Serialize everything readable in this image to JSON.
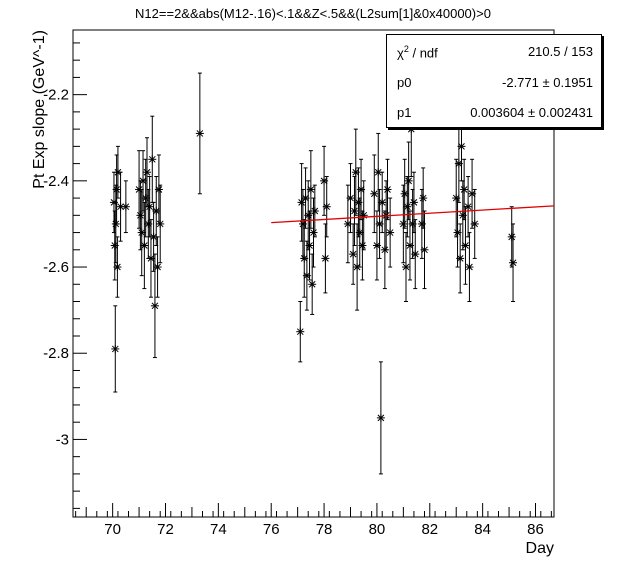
{
  "chart_data": {
    "type": "scatter",
    "title": "N12==2&&abs(M12-.16)<.1&&Z<.5&&(L2sum[1]&0x40000)>0",
    "xlabel": "Day",
    "ylabel": "Pt Exp slope (GeV^-1)",
    "xlim": [
      68.5,
      86.7
    ],
    "ylim": [
      -3.18,
      -2.05
    ],
    "x_ticks": [
      70,
      72,
      74,
      76,
      78,
      80,
      82,
      84,
      86
    ],
    "x_tick_labels": [
      "70",
      "72",
      "74",
      "76",
      "78",
      "80",
      "82",
      "84",
      "86"
    ],
    "y_ticks": [
      -2.2,
      -2.4,
      -2.6,
      -2.8,
      -3.0
    ],
    "y_tick_labels": [
      "-2.2",
      "-2.4",
      "-2.6",
      "-2.8",
      "-3"
    ],
    "grid": false,
    "marker": "asterisk",
    "points": [
      {
        "x": 70.05,
        "y": -2.45,
        "err": 0.07
      },
      {
        "x": 70.08,
        "y": -2.55,
        "err": 0.08
      },
      {
        "x": 70.1,
        "y": -2.79,
        "err": 0.1
      },
      {
        "x": 70.12,
        "y": -2.5,
        "err": 0.09
      },
      {
        "x": 70.15,
        "y": -2.42,
        "err": 0.08
      },
      {
        "x": 70.18,
        "y": -2.6,
        "err": 0.07
      },
      {
        "x": 70.2,
        "y": -2.38,
        "err": 0.06
      },
      {
        "x": 70.3,
        "y": -2.46,
        "err": 0.08
      },
      {
        "x": 70.5,
        "y": -2.46,
        "err": 0.06
      },
      {
        "x": 71.0,
        "y": -2.42,
        "err": 0.09
      },
      {
        "x": 71.05,
        "y": -2.48,
        "err": 0.08
      },
      {
        "x": 71.1,
        "y": -2.52,
        "err": 0.1
      },
      {
        "x": 71.15,
        "y": -2.4,
        "err": 0.07
      },
      {
        "x": 71.2,
        "y": -2.55,
        "err": 0.1
      },
      {
        "x": 71.25,
        "y": -2.44,
        "err": 0.09
      },
      {
        "x": 71.3,
        "y": -2.38,
        "err": 0.08
      },
      {
        "x": 71.35,
        "y": -2.5,
        "err": 0.08
      },
      {
        "x": 71.4,
        "y": -2.46,
        "err": 0.07
      },
      {
        "x": 71.45,
        "y": -2.58,
        "err": 0.09
      },
      {
        "x": 71.5,
        "y": -2.35,
        "err": 0.1
      },
      {
        "x": 71.55,
        "y": -2.53,
        "err": 0.08
      },
      {
        "x": 71.6,
        "y": -2.69,
        "err": 0.12
      },
      {
        "x": 71.65,
        "y": -2.47,
        "err": 0.08
      },
      {
        "x": 71.7,
        "y": -2.6,
        "err": 0.07
      },
      {
        "x": 71.75,
        "y": -2.42,
        "err": 0.08
      },
      {
        "x": 71.8,
        "y": -2.5,
        "err": 0.09
      },
      {
        "x": 73.3,
        "y": -2.29,
        "err": 0.14
      },
      {
        "x": 77.1,
        "y": -2.75,
        "err": 0.07
      },
      {
        "x": 77.15,
        "y": -2.45,
        "err": 0.09
      },
      {
        "x": 77.2,
        "y": -2.5,
        "err": 0.08
      },
      {
        "x": 77.25,
        "y": -2.58,
        "err": 0.09
      },
      {
        "x": 77.3,
        "y": -2.44,
        "err": 0.07
      },
      {
        "x": 77.35,
        "y": -2.62,
        "err": 0.08
      },
      {
        "x": 77.4,
        "y": -2.48,
        "err": 0.08
      },
      {
        "x": 77.45,
        "y": -2.55,
        "err": 0.08
      },
      {
        "x": 77.5,
        "y": -2.42,
        "err": 0.09
      },
      {
        "x": 77.55,
        "y": -2.64,
        "err": 0.07
      },
      {
        "x": 77.6,
        "y": -2.52,
        "err": 0.08
      },
      {
        "x": 77.65,
        "y": -2.47,
        "err": 0.06
      },
      {
        "x": 78.0,
        "y": -2.4,
        "err": 0.08
      },
      {
        "x": 78.05,
        "y": -2.58,
        "err": 0.08
      },
      {
        "x": 78.1,
        "y": -2.46,
        "err": 0.07
      },
      {
        "x": 78.9,
        "y": -2.5,
        "err": 0.09
      },
      {
        "x": 79.0,
        "y": -2.44,
        "err": 0.08
      },
      {
        "x": 79.1,
        "y": -2.57,
        "err": 0.07
      },
      {
        "x": 79.15,
        "y": -2.47,
        "err": 0.08
      },
      {
        "x": 79.2,
        "y": -2.38,
        "err": 0.1
      },
      {
        "x": 79.25,
        "y": -2.6,
        "err": 0.1
      },
      {
        "x": 79.3,
        "y": -2.45,
        "err": 0.08
      },
      {
        "x": 79.35,
        "y": -2.52,
        "err": 0.08
      },
      {
        "x": 79.4,
        "y": -2.42,
        "err": 0.07
      },
      {
        "x": 79.45,
        "y": -2.55,
        "err": 0.08
      },
      {
        "x": 79.5,
        "y": -2.48,
        "err": 0.08
      },
      {
        "x": 79.9,
        "y": -2.43,
        "err": 0.09
      },
      {
        "x": 80.0,
        "y": -2.55,
        "err": 0.08
      },
      {
        "x": 80.05,
        "y": -2.38,
        "err": 0.09
      },
      {
        "x": 80.1,
        "y": -2.5,
        "err": 0.08
      },
      {
        "x": 80.15,
        "y": -2.95,
        "err": 0.13
      },
      {
        "x": 80.2,
        "y": -2.45,
        "err": 0.07
      },
      {
        "x": 80.3,
        "y": -2.56,
        "err": 0.09
      },
      {
        "x": 80.35,
        "y": -2.48,
        "err": 0.08
      },
      {
        "x": 80.4,
        "y": -2.42,
        "err": 0.07
      },
      {
        "x": 80.5,
        "y": -2.52,
        "err": 0.08
      },
      {
        "x": 81.0,
        "y": -2.5,
        "err": 0.09
      },
      {
        "x": 81.05,
        "y": -2.43,
        "err": 0.08
      },
      {
        "x": 81.1,
        "y": -2.6,
        "err": 0.08
      },
      {
        "x": 81.15,
        "y": -2.46,
        "err": 0.07
      },
      {
        "x": 81.2,
        "y": -2.4,
        "err": 0.09
      },
      {
        "x": 81.25,
        "y": -2.55,
        "err": 0.08
      },
      {
        "x": 81.3,
        "y": -2.28,
        "err": 0.11
      },
      {
        "x": 81.35,
        "y": -2.5,
        "err": 0.08
      },
      {
        "x": 81.4,
        "y": -2.45,
        "err": 0.07
      },
      {
        "x": 81.45,
        "y": -2.57,
        "err": 0.08
      },
      {
        "x": 81.7,
        "y": -2.5,
        "err": 0.08
      },
      {
        "x": 81.75,
        "y": -2.44,
        "err": 0.07
      },
      {
        "x": 81.8,
        "y": -2.56,
        "err": 0.09
      },
      {
        "x": 83.0,
        "y": -2.44,
        "err": 0.09
      },
      {
        "x": 83.05,
        "y": -2.52,
        "err": 0.08
      },
      {
        "x": 83.1,
        "y": -2.36,
        "err": 0.09
      },
      {
        "x": 83.15,
        "y": -2.58,
        "err": 0.08
      },
      {
        "x": 83.2,
        "y": -2.32,
        "err": 0.08
      },
      {
        "x": 83.25,
        "y": -2.48,
        "err": 0.08
      },
      {
        "x": 83.3,
        "y": -2.42,
        "err": 0.07
      },
      {
        "x": 83.35,
        "y": -2.55,
        "err": 0.09
      },
      {
        "x": 83.45,
        "y": -2.46,
        "err": 0.07
      },
      {
        "x": 83.5,
        "y": -2.6,
        "err": 0.08
      },
      {
        "x": 83.6,
        "y": -2.43,
        "err": 0.08
      },
      {
        "x": 83.7,
        "y": -2.5,
        "err": 0.08
      },
      {
        "x": 85.1,
        "y": -2.53,
        "err": 0.07
      },
      {
        "x": 85.15,
        "y": -2.59,
        "err": 0.09
      }
    ],
    "fit": {
      "type": "linear",
      "color": "#e00000",
      "x_range": [
        76.0,
        86.7
      ],
      "y_start": -2.497,
      "y_end": -2.458
    },
    "stats": {
      "chi2_label": "/ ndf",
      "chi2_value": "210.5 / 153",
      "p0_label": "p0",
      "p0_value": "-2.771 ± 0.1951",
      "p1_label": "p1",
      "p1_value": "0.003604 ± 0.002431"
    }
  }
}
